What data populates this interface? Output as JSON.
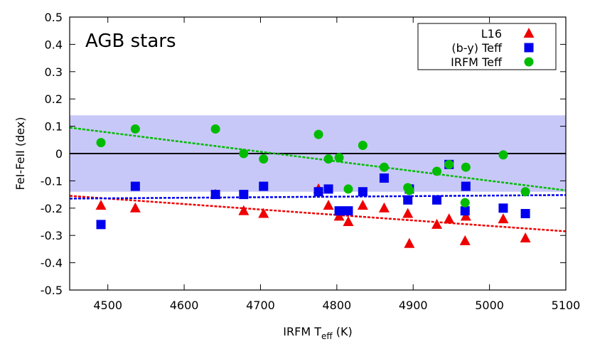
{
  "chart_data": {
    "type": "scatter",
    "annotation": "AGB stars",
    "xlabel_main": "IRFM T",
    "xlabel_sub": "eff",
    "xlabel_unit": " (K)",
    "ylabel": "FeI-FeII (dex)",
    "xlim": [
      4450,
      5100
    ],
    "ylim": [
      -0.5,
      0.5
    ],
    "x_ticks": [
      4500,
      4600,
      4700,
      4800,
      4900,
      5000,
      5100
    ],
    "y_ticks": [
      -0.5,
      -0.4,
      -0.3,
      -0.2,
      -0.1,
      0,
      0.1,
      0.2,
      0.3,
      0.4,
      0.5
    ],
    "y_tick_labels": [
      "-0.5",
      "-0.4",
      "-0.3",
      "-0.2",
      "-0.1",
      "0",
      "0.1",
      "0.2",
      "0.3",
      "0.4",
      "0.5"
    ],
    "band": {
      "y0": -0.14,
      "y1": 0.14,
      "color": "#c8c8f8"
    },
    "zero_line": 0,
    "legend_position": "top-right",
    "series": [
      {
        "name": "L16",
        "marker": "triangle",
        "color": "#ee0000",
        "points": [
          [
            4491,
            -0.19
          ],
          [
            4536,
            -0.2
          ],
          [
            4641,
            -0.15
          ],
          [
            4678,
            -0.21
          ],
          [
            4704,
            -0.22
          ],
          [
            4776,
            -0.13
          ],
          [
            4789,
            -0.19
          ],
          [
            4803,
            -0.23
          ],
          [
            4815,
            -0.25
          ],
          [
            4834,
            -0.19
          ],
          [
            4862,
            -0.2
          ],
          [
            4893,
            -0.22
          ],
          [
            4895,
            -0.33
          ],
          [
            4931,
            -0.26
          ],
          [
            4947,
            -0.24
          ],
          [
            4968,
            -0.32
          ],
          [
            4969,
            -0.23
          ],
          [
            5018,
            -0.24
          ],
          [
            5047,
            -0.31
          ]
        ],
        "fit": [
          [
            4450,
            -0.155
          ],
          [
            5100,
            -0.285
          ]
        ]
      },
      {
        "name": "(b-y) Teff",
        "marker": "square",
        "color": "#0000ee",
        "points": [
          [
            4491,
            -0.26
          ],
          [
            4536,
            -0.12
          ],
          [
            4641,
            -0.15
          ],
          [
            4678,
            -0.15
          ],
          [
            4704,
            -0.12
          ],
          [
            4776,
            -0.14
          ],
          [
            4789,
            -0.13
          ],
          [
            4803,
            -0.21
          ],
          [
            4815,
            -0.21
          ],
          [
            4834,
            -0.14
          ],
          [
            4862,
            -0.09
          ],
          [
            4893,
            -0.17
          ],
          [
            4895,
            -0.13
          ],
          [
            4931,
            -0.17
          ],
          [
            4947,
            -0.04
          ],
          [
            4968,
            -0.21
          ],
          [
            4969,
            -0.12
          ],
          [
            5018,
            -0.2
          ],
          [
            5047,
            -0.22
          ]
        ],
        "fit": [
          [
            4450,
            -0.165
          ],
          [
            5100,
            -0.152
          ]
        ]
      },
      {
        "name": "IRFM Teff",
        "marker": "circle",
        "color": "#00bb00",
        "points": [
          [
            4491,
            0.04
          ],
          [
            4536,
            0.09
          ],
          [
            4641,
            0.09
          ],
          [
            4678,
            0.0
          ],
          [
            4704,
            -0.02
          ],
          [
            4776,
            0.07
          ],
          [
            4789,
            -0.02
          ],
          [
            4803,
            -0.015
          ],
          [
            4815,
            -0.13
          ],
          [
            4834,
            0.03
          ],
          [
            4862,
            -0.05
          ],
          [
            4893,
            -0.125
          ],
          [
            4895,
            -0.135
          ],
          [
            4931,
            -0.065
          ],
          [
            4947,
            -0.04
          ],
          [
            4968,
            -0.18
          ],
          [
            4969,
            -0.05
          ],
          [
            5018,
            -0.005
          ],
          [
            5047,
            -0.14
          ]
        ],
        "fit": [
          [
            4450,
            0.095
          ],
          [
            5100,
            -0.135
          ]
        ]
      }
    ]
  }
}
